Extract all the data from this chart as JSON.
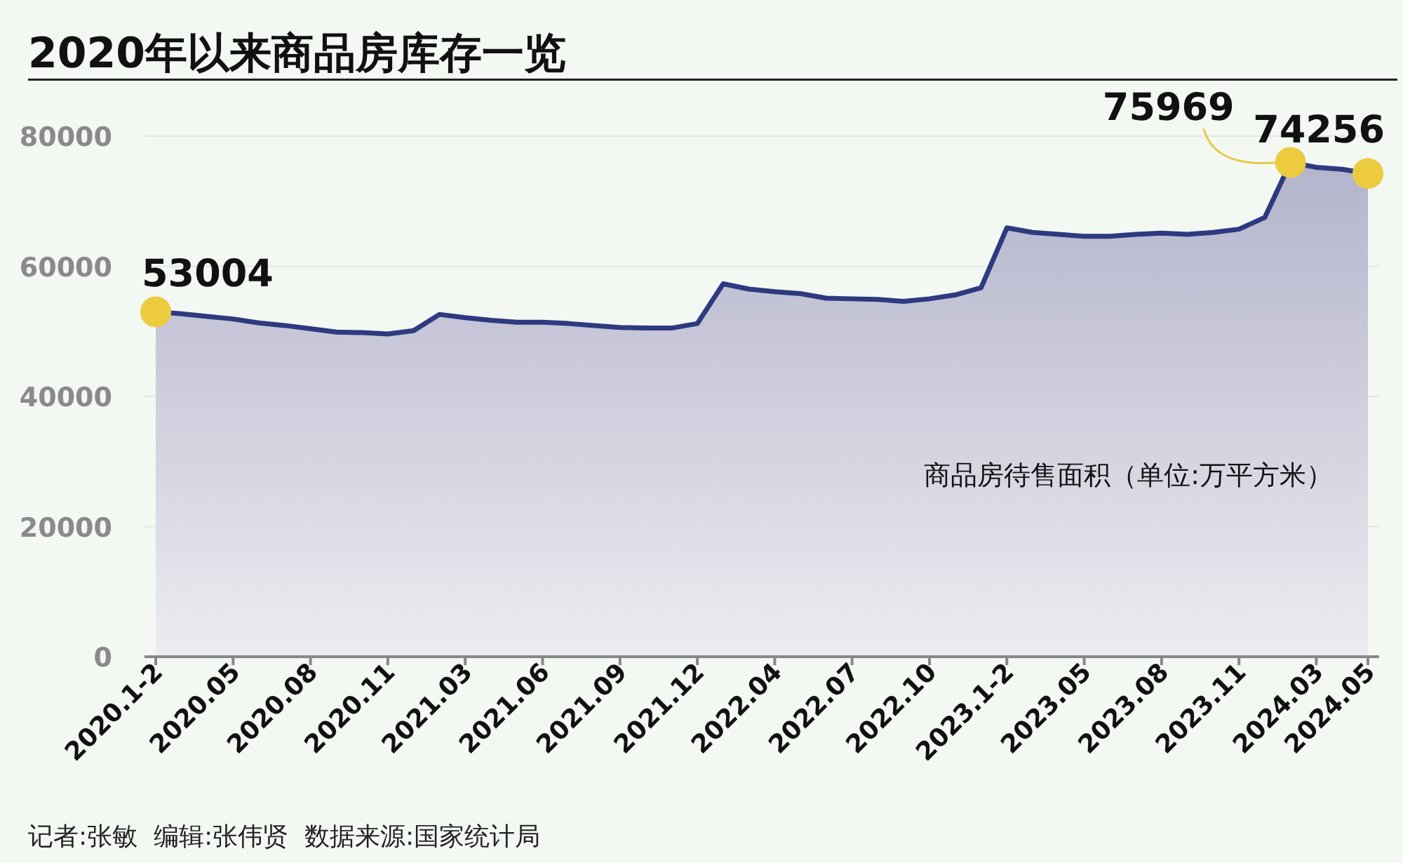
{
  "chart_data": {
    "type": "area",
    "title": "2020年以来商品房库存一览",
    "ylabel": "商品房待售面积（单位:万平方米）",
    "annotations": [
      "记者:张敏  编辑:张伟贤  数据来源:国家统计局"
    ],
    "categories": [
      "2020.1-2",
      null,
      null,
      "2020.05",
      null,
      null,
      "2020.08",
      null,
      null,
      "2020.11",
      null,
      null,
      "2021.03",
      null,
      null,
      "2021.06",
      null,
      null,
      "2021.09",
      null,
      null,
      "2021.12",
      null,
      null,
      "2022.04",
      null,
      null,
      "2022.07",
      null,
      null,
      "2022.10",
      null,
      null,
      "2023.1-2",
      null,
      null,
      "2023.05",
      null,
      null,
      "2023.08",
      null,
      null,
      "2023.11",
      null,
      null,
      "2024.03",
      null,
      "2024.05"
    ],
    "series": [
      {
        "color": "#2e3a80",
        "values": [
          53004,
          52700,
          52300,
          51900,
          51300,
          50900,
          50400,
          49900,
          49800,
          49600,
          50100,
          52600,
          52100,
          51700,
          51400,
          51400,
          51200,
          50900,
          50600,
          50500,
          50500,
          51200,
          57300,
          56500,
          56100,
          55800,
          55100,
          55000,
          54900,
          54600,
          55000,
          55600,
          56700,
          65900,
          65200,
          64900,
          64600,
          64600,
          64900,
          65100,
          64900,
          65200,
          65700,
          67500,
          75969,
          75200,
          74900,
          74256
        ],
        "value_labels": [
          "53004",
          null,
          null,
          null,
          null,
          null,
          null,
          null,
          null,
          null,
          null,
          null,
          null,
          null,
          null,
          null,
          null,
          null,
          null,
          null,
          null,
          null,
          null,
          null,
          null,
          null,
          null,
          null,
          null,
          null,
          null,
          null,
          null,
          null,
          null,
          null,
          null,
          null,
          null,
          null,
          null,
          null,
          null,
          null,
          "75969",
          null,
          null,
          "74256"
        ]
      }
    ],
    "ylim": [
      0,
      80000
    ],
    "yticks": [
      0,
      20000,
      40000,
      60000,
      80000
    ],
    "grid": "y"
  }
}
